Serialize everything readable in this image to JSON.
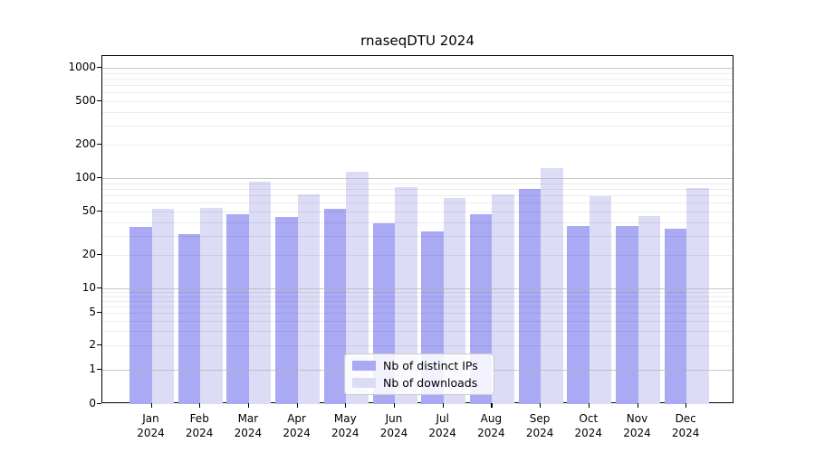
{
  "chart_data": {
    "type": "bar",
    "title": "rnaseqDTU 2024",
    "xlabel": "",
    "ylabel": "",
    "x_tick_labels_line1": [
      "Jan",
      "Feb",
      "Mar",
      "Apr",
      "May",
      "Jun",
      "Jul",
      "Aug",
      "Sep",
      "Oct",
      "Nov",
      "Dec"
    ],
    "x_tick_labels_line2": [
      "2024",
      "2024",
      "2024",
      "2024",
      "2024",
      "2024",
      "2024",
      "2024",
      "2024",
      "2024",
      "2024",
      "2024"
    ],
    "categories": [
      "Jan 2024",
      "Feb 2024",
      "Mar 2024",
      "Apr 2024",
      "May 2024",
      "Jun 2024",
      "Jul 2024",
      "Aug 2024",
      "Sep 2024",
      "Oct 2024",
      "Nov 2024",
      "Dec 2024"
    ],
    "series": [
      {
        "name": "Nb of distinct IPs",
        "color": "#a9a9f4",
        "values": [
          36,
          31,
          47,
          44,
          53,
          39,
          33,
          47,
          80,
          37,
          37,
          35
        ]
      },
      {
        "name": "Nb of downloads",
        "color": "#dcdcf7",
        "values": [
          53,
          54,
          93,
          71,
          114,
          83,
          66,
          71,
          124,
          69,
          45,
          81
        ]
      }
    ],
    "y_axis": {
      "scale": "log-like with 0 baseline",
      "tick_values": [
        0,
        1,
        2,
        5,
        10,
        20,
        50,
        100,
        200,
        500,
        1000
      ],
      "major_grid_values": [
        1,
        10,
        100,
        1000
      ],
      "ylim": [
        0,
        1280
      ],
      "grid": "horizontal only"
    },
    "legend": {
      "position": "lower center",
      "entries": [
        "Nb of distinct IPs",
        "Nb of downloads"
      ]
    }
  }
}
